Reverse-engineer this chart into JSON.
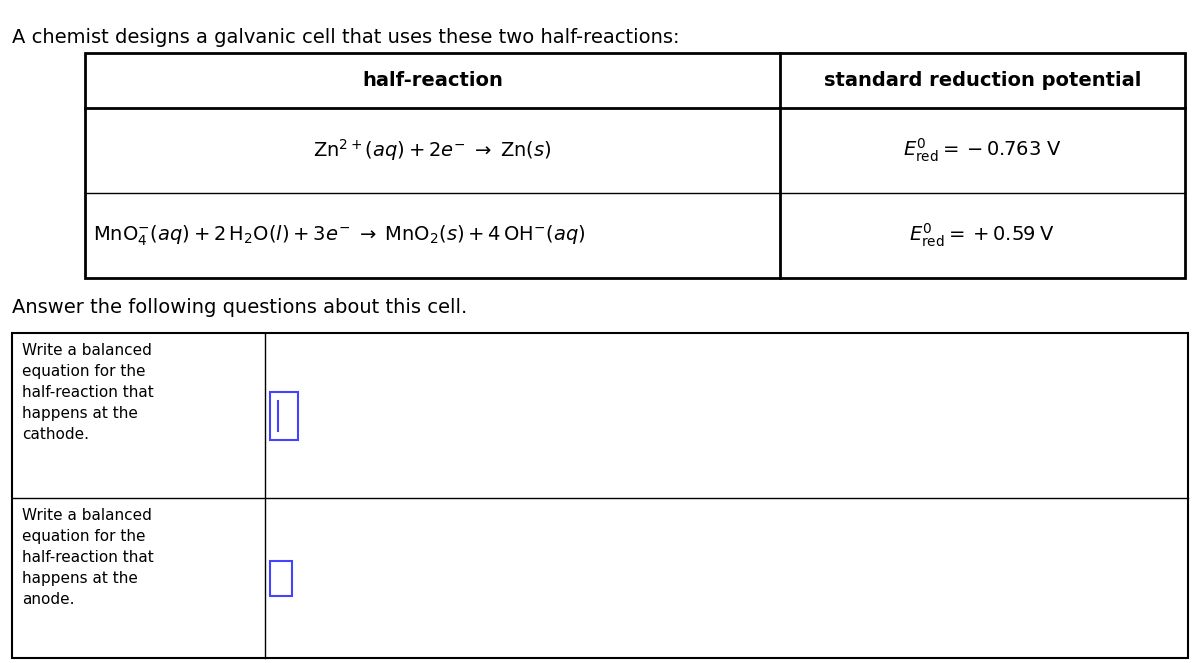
{
  "title_text": "A chemist designs a galvanic cell that uses these two half-reactions:",
  "answer_prompt": "Answer the following questions about this cell.",
  "table1_col1_header": "half-reaction",
  "table1_col2_header": "standard reduction potential",
  "row1_reaction": "$\\mathrm{Zn}^{2+}\\mathit{(aq)}+2e^{-}\\;\\rightarrow\\;Zn(s)$",
  "row1_potential": "$E^{0}_{\\mathrm{red}}=-0.763\\;\\mathrm{V}$",
  "row2_reaction": "$\\mathrm{MnO}_{4}^{-}\\mathit{(aq)}+2\\,\\mathrm{H}_{2}\\mathrm{O}(l)+3e^{-}\\;\\rightarrow\\;\\mathrm{MnO}_{2}(s)+4\\,\\mathrm{OH}^{-}\\mathit{(aq)}$",
  "row2_potential": "$E^{0}_{\\mathrm{red}}=+0.59\\;\\mathrm{V}$",
  "q1_text": "Write a balanced\nequation for the\nhalf-reaction that\nhappens at the\ncathode.",
  "q2_text": "Write a balanced\nequation for the\nhalf-reaction that\nhappens at the\nanode.",
  "bg_color": "#ffffff",
  "text_color": "#000000",
  "table_border_color": "#000000",
  "input_box_color": "#4444ff",
  "font_size_title": 14,
  "font_size_table": 13,
  "font_size_question": 11
}
